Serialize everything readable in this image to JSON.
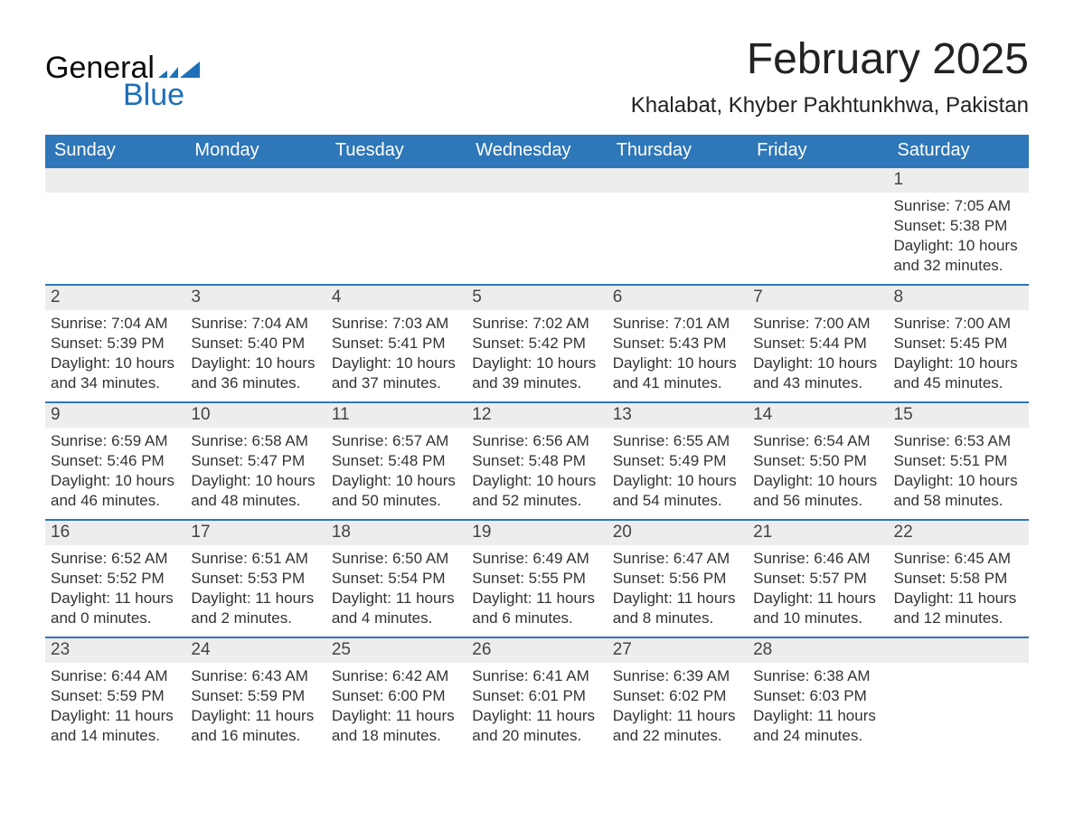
{
  "logo": {
    "word1": "General",
    "word2": "Blue",
    "accent_color": "#1d6fb8"
  },
  "title": "February 2025",
  "subtitle": "Khalabat, Khyber Pakhtunkhwa, Pakistan",
  "colors": {
    "header_bg": "#2e77b8",
    "header_text": "#ffffff",
    "row_divider": "#2e77b8",
    "daynum_bg": "#ededed",
    "text": "#222222",
    "body_bg": "#ffffff"
  },
  "fonts": {
    "base_family": "Segoe UI",
    "title_size_pt": 36,
    "subtitle_size_pt": 18,
    "th_size_pt": 15,
    "cell_size_pt": 13
  },
  "day_headers": [
    "Sunday",
    "Monday",
    "Tuesday",
    "Wednesday",
    "Thursday",
    "Friday",
    "Saturday"
  ],
  "labels": {
    "sunrise": "Sunrise:",
    "sunset": "Sunset:",
    "daylight": "Daylight:"
  },
  "weeks": [
    [
      null,
      null,
      null,
      null,
      null,
      null,
      {
        "day": "1",
        "sunrise": "7:05 AM",
        "sunset": "5:38 PM",
        "daylight": "10 hours and 32 minutes."
      }
    ],
    [
      {
        "day": "2",
        "sunrise": "7:04 AM",
        "sunset": "5:39 PM",
        "daylight": "10 hours and 34 minutes."
      },
      {
        "day": "3",
        "sunrise": "7:04 AM",
        "sunset": "5:40 PM",
        "daylight": "10 hours and 36 minutes."
      },
      {
        "day": "4",
        "sunrise": "7:03 AM",
        "sunset": "5:41 PM",
        "daylight": "10 hours and 37 minutes."
      },
      {
        "day": "5",
        "sunrise": "7:02 AM",
        "sunset": "5:42 PM",
        "daylight": "10 hours and 39 minutes."
      },
      {
        "day": "6",
        "sunrise": "7:01 AM",
        "sunset": "5:43 PM",
        "daylight": "10 hours and 41 minutes."
      },
      {
        "day": "7",
        "sunrise": "7:00 AM",
        "sunset": "5:44 PM",
        "daylight": "10 hours and 43 minutes."
      },
      {
        "day": "8",
        "sunrise": "7:00 AM",
        "sunset": "5:45 PM",
        "daylight": "10 hours and 45 minutes."
      }
    ],
    [
      {
        "day": "9",
        "sunrise": "6:59 AM",
        "sunset": "5:46 PM",
        "daylight": "10 hours and 46 minutes."
      },
      {
        "day": "10",
        "sunrise": "6:58 AM",
        "sunset": "5:47 PM",
        "daylight": "10 hours and 48 minutes."
      },
      {
        "day": "11",
        "sunrise": "6:57 AM",
        "sunset": "5:48 PM",
        "daylight": "10 hours and 50 minutes."
      },
      {
        "day": "12",
        "sunrise": "6:56 AM",
        "sunset": "5:48 PM",
        "daylight": "10 hours and 52 minutes."
      },
      {
        "day": "13",
        "sunrise": "6:55 AM",
        "sunset": "5:49 PM",
        "daylight": "10 hours and 54 minutes."
      },
      {
        "day": "14",
        "sunrise": "6:54 AM",
        "sunset": "5:50 PM",
        "daylight": "10 hours and 56 minutes."
      },
      {
        "day": "15",
        "sunrise": "6:53 AM",
        "sunset": "5:51 PM",
        "daylight": "10 hours and 58 minutes."
      }
    ],
    [
      {
        "day": "16",
        "sunrise": "6:52 AM",
        "sunset": "5:52 PM",
        "daylight": "11 hours and 0 minutes."
      },
      {
        "day": "17",
        "sunrise": "6:51 AM",
        "sunset": "5:53 PM",
        "daylight": "11 hours and 2 minutes."
      },
      {
        "day": "18",
        "sunrise": "6:50 AM",
        "sunset": "5:54 PM",
        "daylight": "11 hours and 4 minutes."
      },
      {
        "day": "19",
        "sunrise": "6:49 AM",
        "sunset": "5:55 PM",
        "daylight": "11 hours and 6 minutes."
      },
      {
        "day": "20",
        "sunrise": "6:47 AM",
        "sunset": "5:56 PM",
        "daylight": "11 hours and 8 minutes."
      },
      {
        "day": "21",
        "sunrise": "6:46 AM",
        "sunset": "5:57 PM",
        "daylight": "11 hours and 10 minutes."
      },
      {
        "day": "22",
        "sunrise": "6:45 AM",
        "sunset": "5:58 PM",
        "daylight": "11 hours and 12 minutes."
      }
    ],
    [
      {
        "day": "23",
        "sunrise": "6:44 AM",
        "sunset": "5:59 PM",
        "daylight": "11 hours and 14 minutes."
      },
      {
        "day": "24",
        "sunrise": "6:43 AM",
        "sunset": "5:59 PM",
        "daylight": "11 hours and 16 minutes."
      },
      {
        "day": "25",
        "sunrise": "6:42 AM",
        "sunset": "6:00 PM",
        "daylight": "11 hours and 18 minutes."
      },
      {
        "day": "26",
        "sunrise": "6:41 AM",
        "sunset": "6:01 PM",
        "daylight": "11 hours and 20 minutes."
      },
      {
        "day": "27",
        "sunrise": "6:39 AM",
        "sunset": "6:02 PM",
        "daylight": "11 hours and 22 minutes."
      },
      {
        "day": "28",
        "sunrise": "6:38 AM",
        "sunset": "6:03 PM",
        "daylight": "11 hours and 24 minutes."
      },
      null
    ]
  ]
}
